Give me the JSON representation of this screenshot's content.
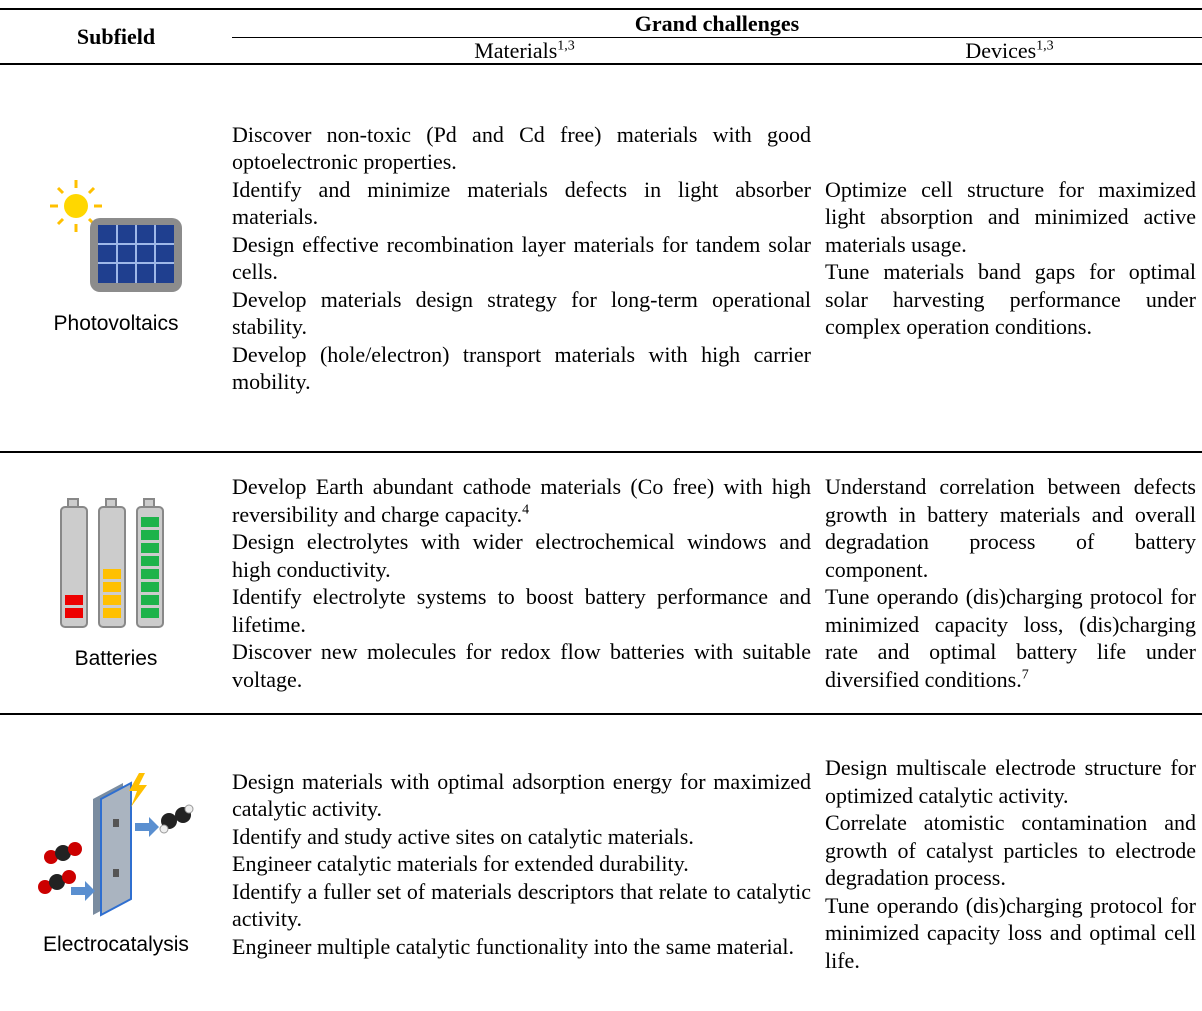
{
  "header": {
    "subfield": "Subfield",
    "group": "Grand challenges",
    "columns": [
      {
        "label": "Materials",
        "sup": "1,3"
      },
      {
        "label": "Devices",
        "sup": "1,3"
      }
    ]
  },
  "rows": [
    {
      "subfield": "Photovoltaics",
      "materials": [
        "Discover non-toxic (Pd and Cd free) materials with good optoelectronic properties.",
        "Identify and minimize materials defects in light absorber materials.",
        "Design effective recombination layer materials for tandem solar cells.",
        "Develop materials design strategy for long-term operational stability.",
        "Develop (hole/electron) transport materials with high carrier mobility."
      ],
      "devices": [
        "Optimize cell structure for maximized light absorption and minimized active materials usage.",
        "Tune materials band gaps for optimal solar harvesting performance under complex operation conditions."
      ]
    },
    {
      "subfield": "Batteries",
      "materials": [
        {
          "text": "Develop Earth abundant cathode materials (Co free) with high reversibility and charge capacity.",
          "sup": "4"
        },
        "Design electrolytes with wider electrochemical windows and high conductivity.",
        "Identify electrolyte systems to boost battery performance and lifetime.",
        "Discover new molecules for redox flow batteries with suitable voltage."
      ],
      "devices": [
        "Understand correlation between defects growth in battery materials and overall degradation process of battery component.",
        {
          "text": "Tune operando (dis)charging protocol for minimized capacity loss, (dis)charging rate and optimal battery life under diversified conditions.",
          "sup": "7"
        }
      ]
    },
    {
      "subfield": "Electrocatalysis",
      "materials": [
        "Design materials with optimal adsorption energy for maximized catalytic activity.",
        "Identify and study active sites on catalytic materials.",
        "Engineer catalytic materials for extended durability.",
        "Identify a fuller set of materials descriptors that relate to catalytic activity.",
        "Engineer multiple catalytic functionality into the same material."
      ],
      "devices": [
        "Design multiscale electrode structure for optimized catalytic activity.",
        "Correlate atomistic contamination and growth of catalyst particles to electrode degradation process.",
        "Tune operando (dis)charging protocol for minimized capacity loss and optimal cell life."
      ]
    }
  ]
}
